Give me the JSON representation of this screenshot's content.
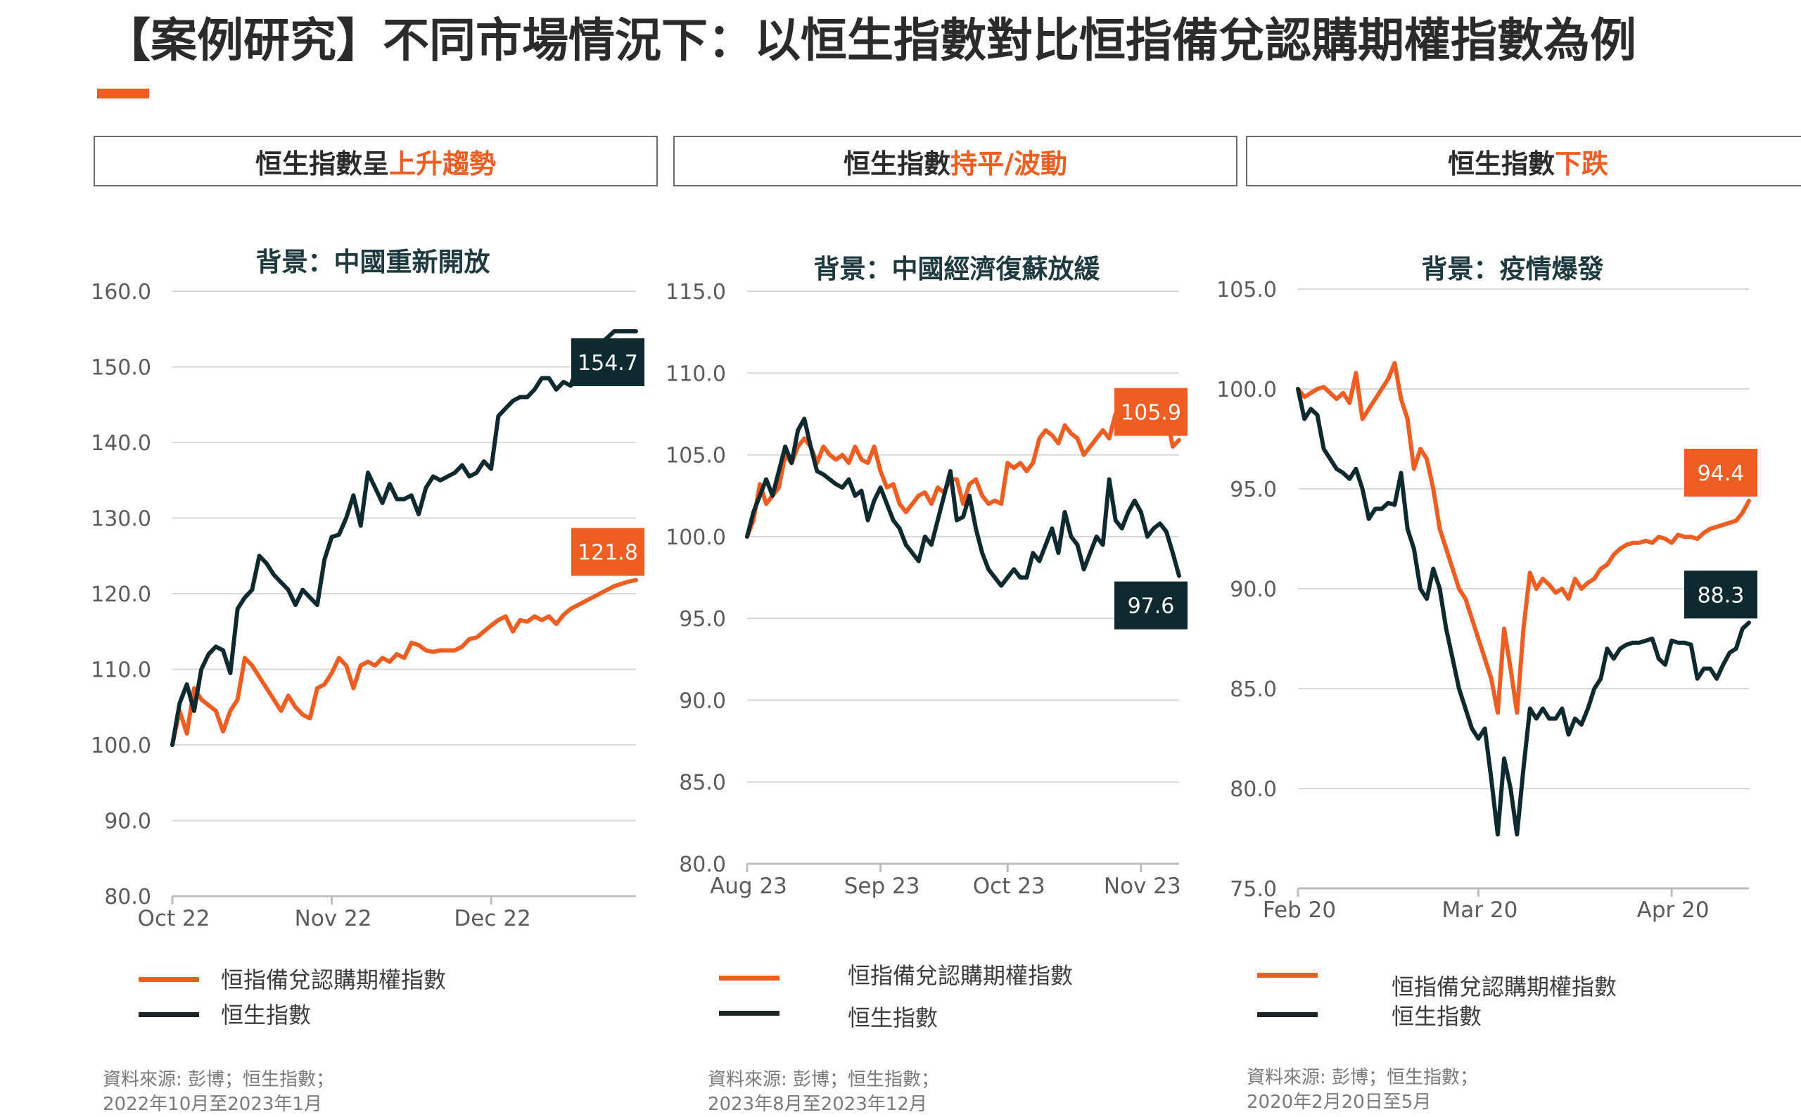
{
  "page": {
    "title": "【案例研究】不同市場情況下：以恒生指數對比恒指備兌認購期權指數為例"
  },
  "colors": {
    "orange": "#ee5d21",
    "dark": "#0f2a2f",
    "grid": "#d8d8d8",
    "axis": "#bdbdbd",
    "tick_text": "#5b5b5b"
  },
  "panels": [
    {
      "header_prefix": "恒生指數呈",
      "header_highlight": "上升趨勢",
      "chart_title": "背景：中國重新開放",
      "legend": [
        "恒指備兌認購期權指數",
        "恒生指數"
      ],
      "source_line1": "資料來源: 彭博；恒生指數；",
      "source_line2": "2022年10月至2023年1月"
    },
    {
      "header_prefix": "恒生指數",
      "header_highlight": "持平/波動",
      "chart_title": "背景：中國經濟復蘇放緩",
      "legend": [
        "恒指備兌認購期權指數",
        "恒生指數"
      ],
      "source_line1": "資料來源: 彭博；恒生指數；",
      "source_line2": "2023年8月至2023年12月"
    },
    {
      "header_prefix": "恒生指數",
      "header_highlight": "下跌",
      "chart_title": "背景：疫情爆發",
      "legend": [
        "恒指備兌認購期權指數",
        "恒生指數"
      ],
      "source_line1": "資料來源: 彭博；恒生指數；",
      "source_line2": "2020年2月20日至5月"
    }
  ],
  "chart_data": [
    {
      "type": "line",
      "title": "背景：中國重新開放",
      "ylim": [
        80,
        160
      ],
      "yticks": [
        "80.0",
        "90.0",
        "100.0",
        "110.0",
        "120.0",
        "130.0",
        "140.0",
        "150.0",
        "160.0"
      ],
      "xticks": [
        {
          "label": "Oct 22",
          "x": 0
        },
        {
          "label": "Nov 22",
          "x": 22
        },
        {
          "label": "Dec 22",
          "x": 44
        }
      ],
      "xlim": [
        0,
        64
      ],
      "grid": true,
      "series": [
        {
          "name": "恒指備兌認購期權指數",
          "color": "orange",
          "end_label": "121.8",
          "x": [
            0,
            1,
            2,
            3,
            4,
            6,
            7,
            8,
            9,
            10,
            11,
            12,
            13,
            14,
            15,
            16,
            17,
            18,
            19,
            20,
            21,
            22,
            23,
            24,
            25,
            26,
            27,
            28,
            29,
            30,
            31,
            32,
            33,
            34,
            35,
            36,
            37,
            38,
            39,
            40,
            41,
            42,
            43,
            44,
            45,
            46,
            47,
            48,
            49,
            50,
            51,
            52,
            53,
            54,
            55,
            56,
            57,
            58,
            59,
            60,
            61,
            62,
            63,
            64
          ],
          "values": [
            100.0,
            104.5,
            101.5,
            107.5,
            106,
            104.5,
            101.8,
            104.5,
            106,
            111.5,
            110.5,
            109,
            107.5,
            106,
            104.5,
            106.5,
            105,
            104,
            103.5,
            107.5,
            108,
            109.5,
            111.5,
            110.5,
            107.5,
            110.5,
            111,
            110.5,
            111.5,
            111,
            112,
            111.5,
            113.5,
            113.2,
            112.5,
            112.3,
            112.5,
            112.5,
            112.5,
            113,
            114,
            114.2,
            115,
            115.8,
            116.5,
            117,
            115,
            116.5,
            116.3,
            117,
            116.5,
            117,
            116,
            117.2,
            118,
            118.5,
            119,
            119.5,
            120,
            120.5,
            121,
            121.3,
            121.6,
            121.8
          ]
        },
        {
          "name": "恒生指數",
          "color": "dark",
          "end_label": "154.7",
          "x": [
            0,
            1,
            2,
            3,
            4,
            5,
            6,
            7,
            8,
            9,
            10,
            11,
            12,
            13,
            14,
            15,
            16,
            17,
            18,
            19,
            20,
            21,
            22,
            23,
            24,
            25,
            26,
            27,
            28,
            29,
            30,
            31,
            32,
            33,
            34,
            35,
            36,
            37,
            38,
            39,
            40,
            41,
            42,
            43,
            44,
            45,
            46,
            47,
            48,
            49,
            50,
            51,
            52,
            53,
            54,
            55,
            56,
            57,
            58,
            59,
            60,
            61,
            62,
            63,
            64
          ],
          "values": [
            100.0,
            105.5,
            108,
            104.5,
            110,
            112,
            113,
            112.5,
            109.5,
            118,
            119.5,
            120.5,
            125,
            124,
            122.5,
            121.5,
            120.5,
            118.5,
            120.5,
            119.5,
            118.5,
            124.5,
            127.5,
            127.8,
            130,
            133,
            129,
            136,
            134,
            132,
            134.5,
            132.5,
            132.5,
            133,
            130.5,
            134,
            135.5,
            135,
            135.5,
            136,
            137,
            135.5,
            136,
            137.5,
            136.5,
            143.5,
            144.5,
            145.5,
            146,
            146,
            147,
            148.5,
            148.5,
            147,
            148,
            147.5,
            150.5,
            151.5,
            152.5,
            153,
            153.8,
            154.7,
            154.7,
            154.7,
            154.7
          ]
        }
      ]
    },
    {
      "type": "line",
      "title": "背景：中國經濟復蘇放緩",
      "ylim": [
        80,
        115
      ],
      "yticks": [
        "80.0",
        "85.0",
        "90.0",
        "95.0",
        "100.0",
        "105.0",
        "110.0",
        "115.0"
      ],
      "xticks": [
        {
          "label": "Aug 23",
          "x": 0
        },
        {
          "label": "Sep 23",
          "x": 21
        },
        {
          "label": "Oct 23",
          "x": 41
        },
        {
          "label": "Nov 23",
          "x": 62
        }
      ],
      "xlim": [
        0,
        68
      ],
      "grid": true,
      "series": [
        {
          "name": "恒指備兌認購期權指數",
          "color": "orange",
          "end_label": "105.9",
          "x": [
            0,
            1,
            2,
            3,
            4,
            5,
            6,
            7,
            8,
            9,
            10,
            11,
            12,
            13,
            14,
            15,
            16,
            17,
            18,
            19,
            20,
            21,
            22,
            23,
            24,
            25,
            26,
            27,
            28,
            29,
            30,
            31,
            32,
            33,
            34,
            35,
            36,
            37,
            38,
            39,
            40,
            41,
            42,
            43,
            44,
            45,
            46,
            47,
            48,
            49,
            50,
            51,
            52,
            53,
            54,
            55,
            56,
            57,
            58,
            59,
            60,
            61,
            62,
            63,
            64,
            65,
            66,
            67,
            68
          ],
          "values": [
            100.0,
            101.0,
            103.2,
            102.0,
            102.5,
            103.0,
            105.0,
            104.5,
            105.5,
            106.0,
            105.5,
            104.5,
            105.5,
            105.0,
            104.7,
            105.0,
            104.5,
            105.5,
            104.7,
            104.5,
            105.5,
            104.0,
            103.0,
            103.2,
            102.0,
            101.5,
            102.0,
            102.5,
            102.7,
            102.0,
            103.0,
            102.7,
            103.5,
            103.5,
            102.0,
            103.2,
            103.5,
            102.5,
            102.0,
            102.2,
            102.0,
            104.5,
            104.2,
            104.5,
            104.0,
            104.5,
            106.0,
            106.5,
            106.2,
            105.7,
            106.8,
            106.3,
            106.0,
            105.0,
            105.5,
            106.0,
            106.5,
            106.0,
            107.5,
            107.0,
            107.5,
            107.8,
            108.5,
            107.5,
            107.8,
            107.7,
            107.5,
            105.5,
            105.9
          ]
        },
        {
          "name": "恒生指數",
          "color": "dark",
          "end_label": "97.6",
          "x": [
            0,
            1,
            2,
            3,
            4,
            5,
            6,
            7,
            8,
            9,
            10,
            11,
            12,
            13,
            14,
            15,
            16,
            17,
            18,
            19,
            20,
            21,
            22,
            23,
            24,
            25,
            26,
            27,
            28,
            29,
            30,
            31,
            32,
            33,
            34,
            35,
            36,
            37,
            38,
            39,
            40,
            41,
            42,
            43,
            44,
            45,
            46,
            47,
            48,
            49,
            50,
            51,
            52,
            53,
            54,
            55,
            56,
            57,
            58,
            59,
            60,
            61,
            62,
            63,
            64,
            65,
            66,
            67,
            68
          ],
          "values": [
            100.0,
            101.5,
            102.5,
            103.5,
            102.5,
            104.0,
            105.5,
            104.5,
            106.5,
            107.2,
            105.5,
            104.0,
            103.8,
            103.5,
            103.2,
            103.0,
            103.5,
            102.5,
            102.8,
            101.0,
            102.2,
            103.0,
            102.0,
            101.0,
            100.5,
            99.5,
            99.0,
            98.5,
            100.0,
            99.5,
            101.0,
            102.5,
            104.0,
            101.0,
            101.2,
            102.5,
            100.5,
            99.0,
            98.0,
            97.5,
            97.0,
            97.5,
            98.0,
            97.5,
            97.5,
            99.0,
            98.5,
            99.5,
            100.5,
            99.0,
            101.5,
            100.0,
            99.5,
            98.0,
            99.0,
            100.0,
            99.5,
            103.5,
            101.0,
            100.5,
            101.5,
            102.2,
            101.5,
            100.0,
            100.5,
            100.8,
            100.3,
            99.0,
            97.6
          ]
        }
      ]
    },
    {
      "type": "line",
      "title": "背景：疫情爆發",
      "ylim": [
        75,
        105
      ],
      "yticks": [
        "75.0",
        "80.0",
        "85.0",
        "90.0",
        "95.0",
        "100.0",
        "105.0"
      ],
      "xticks": [
        {
          "label": "Feb 20",
          "x": 0
        },
        {
          "label": "Mar 20",
          "x": 28
        },
        {
          "label": "Apr 20",
          "x": 58
        }
      ],
      "xlim": [
        0,
        70
      ],
      "grid": true,
      "series": [
        {
          "name": "恒指備兌認購期權指數",
          "color": "orange",
          "end_label": "94.4",
          "x": [
            0,
            1,
            2,
            3,
            4,
            5,
            6,
            7,
            8,
            9,
            10,
            11,
            12,
            13,
            14,
            15,
            16,
            17,
            18,
            19,
            20,
            21,
            22,
            23,
            24,
            25,
            26,
            27,
            28,
            29,
            30,
            31,
            32,
            33,
            34,
            35,
            36,
            37,
            38,
            39,
            40,
            41,
            42,
            43,
            44,
            45,
            46,
            47,
            48,
            49,
            50,
            51,
            52,
            53,
            54,
            55,
            56,
            57,
            58,
            59,
            60,
            61,
            62,
            63,
            64,
            65,
            66,
            67,
            68,
            69,
            70
          ],
          "values": [
            100.0,
            99.6,
            99.8,
            100.0,
            100.1,
            99.8,
            99.5,
            99.8,
            99.3,
            100.8,
            98.5,
            99.0,
            99.5,
            100.0,
            100.5,
            101.3,
            99.5,
            98.5,
            96.0,
            97.0,
            96.5,
            95.0,
            93.0,
            92.0,
            91.0,
            90.0,
            89.5,
            88.5,
            87.5,
            86.5,
            85.5,
            83.8,
            88.0,
            86.0,
            83.8,
            88.0,
            90.8,
            90.0,
            90.5,
            90.2,
            89.8,
            90.0,
            89.5,
            90.5,
            90.0,
            90.3,
            90.5,
            91.0,
            91.2,
            91.7,
            92.0,
            92.2,
            92.3,
            92.3,
            92.4,
            92.3,
            92.6,
            92.5,
            92.3,
            92.7,
            92.6,
            92.6,
            92.5,
            92.8,
            93.0,
            93.1,
            93.2,
            93.3,
            93.4,
            93.8,
            94.4
          ]
        },
        {
          "name": "恒生指數",
          "color": "dark",
          "end_label": "88.3",
          "x": [
            0,
            1,
            2,
            3,
            4,
            5,
            6,
            7,
            8,
            9,
            10,
            11,
            12,
            13,
            14,
            15,
            16,
            17,
            18,
            19,
            20,
            21,
            22,
            23,
            24,
            25,
            26,
            27,
            28,
            29,
            30,
            31,
            32,
            33,
            34,
            35,
            36,
            37,
            38,
            39,
            40,
            41,
            42,
            43,
            44,
            45,
            46,
            47,
            48,
            49,
            50,
            51,
            52,
            53,
            54,
            55,
            56,
            57,
            58,
            59,
            60,
            61,
            62,
            63,
            64,
            65,
            66,
            67,
            68,
            69,
            70
          ],
          "values": [
            100.0,
            98.5,
            99.0,
            98.7,
            97.0,
            96.5,
            96.0,
            95.8,
            95.5,
            96.0,
            95.0,
            93.5,
            94.0,
            94.0,
            94.3,
            94.2,
            95.8,
            93.0,
            92.0,
            90.0,
            89.5,
            91.0,
            90.0,
            88.0,
            86.5,
            85.0,
            84.0,
            83.0,
            82.5,
            83.0,
            80.5,
            77.7,
            81.5,
            80.0,
            77.7,
            81.0,
            84.0,
            83.5,
            84.0,
            83.5,
            83.5,
            84.0,
            82.7,
            83.5,
            83.2,
            84.0,
            85.0,
            85.5,
            87.0,
            86.5,
            87.0,
            87.2,
            87.3,
            87.3,
            87.4,
            87.5,
            86.5,
            86.2,
            87.4,
            87.3,
            87.3,
            87.2,
            85.5,
            86.0,
            86.0,
            85.5,
            86.2,
            86.8,
            87.0,
            88.0,
            88.3
          ]
        }
      ]
    }
  ]
}
